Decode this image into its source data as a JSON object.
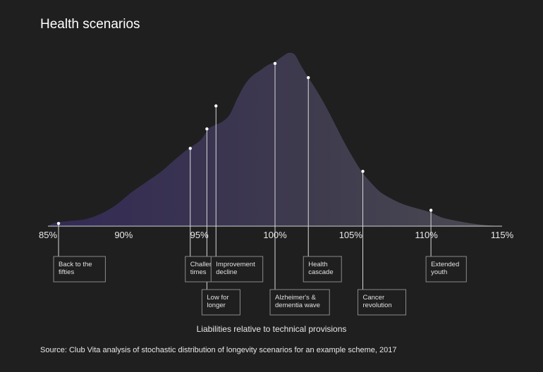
{
  "title": "Health scenarios",
  "source": "Source: Club Vita analysis of stochastic distribution of longevity scenarios for an example scheme, 2017",
  "colors": {
    "background": "#1f1f1f",
    "curve_left": "#332a55",
    "curve_right": "#4a4a52",
    "axis": "#d0d0d0",
    "label_box_border": "#8a8a8a"
  },
  "chart_data": {
    "type": "area",
    "title": "Health scenarios",
    "xlabel": "Liabilities relative to technical provisions",
    "ylabel": "",
    "xlim": [
      85,
      115
    ],
    "x_ticks": [
      85,
      90,
      95,
      100,
      105,
      110,
      115
    ],
    "x_tick_labels": [
      "85%",
      "90%",
      "95%",
      "100%",
      "105%",
      "110%",
      "115%"
    ],
    "ylim": [
      0,
      1
    ],
    "grid": false,
    "distribution": {
      "x": [
        85,
        85.5,
        86.5,
        87.5,
        88.5,
        89.5,
        90.5,
        91.5,
        92.5,
        93.3,
        94.0,
        94.5,
        95.0,
        95.3,
        95.6,
        96.0,
        96.5,
        97.0,
        97.5,
        98.0,
        98.5,
        99.0,
        99.5,
        100.0,
        100.5,
        100.9,
        101.3,
        101.7,
        102.2,
        102.8,
        103.4,
        104.0,
        104.6,
        105.2,
        105.8,
        106.4,
        107.0,
        107.8,
        108.6,
        109.4,
        110.2,
        111.0,
        112.0,
        113.0,
        114.0,
        115.0
      ],
      "y": [
        0.0,
        0.02,
        0.03,
        0.04,
        0.07,
        0.12,
        0.19,
        0.25,
        0.31,
        0.37,
        0.42,
        0.45,
        0.48,
        0.51,
        0.55,
        0.57,
        0.59,
        0.63,
        0.72,
        0.8,
        0.85,
        0.88,
        0.91,
        0.93,
        0.96,
        0.98,
        0.97,
        0.91,
        0.84,
        0.76,
        0.67,
        0.57,
        0.47,
        0.38,
        0.3,
        0.24,
        0.19,
        0.15,
        0.12,
        0.1,
        0.08,
        0.05,
        0.03,
        0.015,
        0.005,
        0.0
      ]
    },
    "scenarios": [
      {
        "label": "Back to the\nfifties",
        "x": 85.7,
        "y": 0.015,
        "row": 1
      },
      {
        "label": "Challenging\ntimes",
        "x": 94.4,
        "y": 0.44,
        "row": 1
      },
      {
        "label": "Low for\nlonger",
        "x": 95.5,
        "y": 0.55,
        "row": 2
      },
      {
        "label": "Improvement\ndecline",
        "x": 96.1,
        "y": 0.68,
        "row": 1
      },
      {
        "label": "Alzheimer's &\ndementia wave",
        "x": 100.0,
        "y": 0.92,
        "row": 2
      },
      {
        "label": "Health\ncascade",
        "x": 102.2,
        "y": 0.84,
        "row": 1
      },
      {
        "label": "Cancer\nrevolution",
        "x": 105.8,
        "y": 0.31,
        "row": 2
      },
      {
        "label": "Extended\nyouth",
        "x": 110.3,
        "y": 0.09,
        "row": 1
      }
    ]
  }
}
